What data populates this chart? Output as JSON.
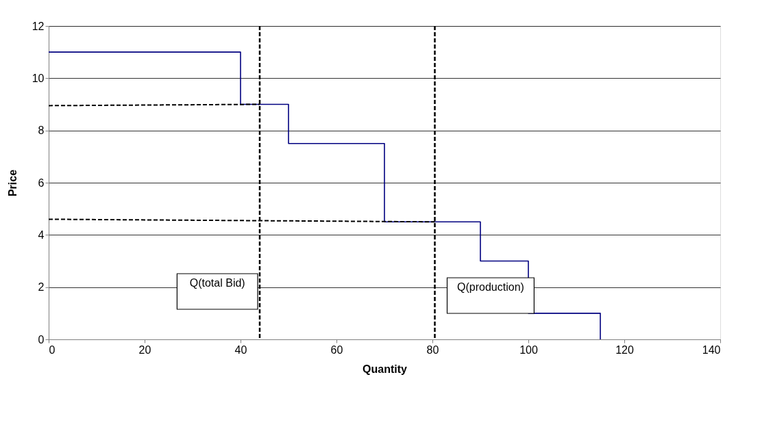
{
  "chart_data": {
    "type": "step",
    "xlabel": "Quantity",
    "ylabel": "Price",
    "series": [
      {
        "color": "#000080",
        "x": [
          0,
          40,
          50,
          70,
          90,
          100,
          115
        ],
        "values": [
          11,
          9,
          7.5,
          4.5,
          3,
          1,
          0
        ]
      },
      {
        "type": "line",
        "color": "#000000",
        "line_style": "dashed",
        "x": [
          0,
          44
        ],
        "values": [
          8.95,
          9.0
        ]
      },
      {
        "type": "line",
        "color": "#000000",
        "line_style": "dashed",
        "x": [
          0,
          80.5
        ],
        "values": [
          4.6,
          4.5
        ]
      }
    ],
    "ref_lines": [
      {
        "axis": "x",
        "value": 44,
        "label": "Q(total Bid)",
        "color": "#000000",
        "line_style": "dashed"
      },
      {
        "axis": "x",
        "value": 80.5,
        "label": "Q(production)",
        "color": "#000000",
        "line_style": "dashed"
      }
    ],
    "xlim": [
      0,
      140
    ],
    "xticks": [
      0,
      20,
      40,
      60,
      80,
      100,
      120,
      140
    ],
    "ylim": [
      0,
      12
    ],
    "yticks": [
      0,
      2,
      4,
      6,
      8,
      10,
      12
    ],
    "grid": "y",
    "marker": "none"
  }
}
